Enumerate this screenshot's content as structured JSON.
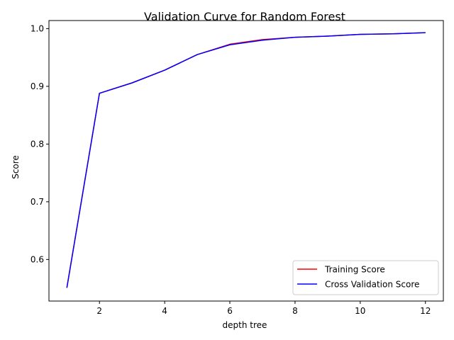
{
  "chart_data": {
    "type": "line",
    "title": "Validation Curve for Random Forest",
    "xlabel": "depth tree",
    "ylabel": "Score",
    "xlim": [
      0.45,
      12.55
    ],
    "ylim": [
      0.528,
      1.014
    ],
    "xticks": [
      2,
      4,
      6,
      8,
      10,
      12
    ],
    "yticks": [
      0.6,
      0.7,
      0.8,
      0.9,
      1.0
    ],
    "x": [
      1,
      2,
      3,
      4,
      5,
      6,
      7,
      8,
      9,
      10,
      11,
      12
    ],
    "series": [
      {
        "name": "Training Score",
        "color": "#ff0000",
        "values": [
          0.551,
          0.888,
          0.906,
          0.928,
          0.955,
          0.973,
          0.981,
          0.985,
          0.987,
          0.99,
          0.991,
          0.993
        ]
      },
      {
        "name": "Cross Validation Score",
        "color": "#0000ff",
        "values": [
          0.551,
          0.888,
          0.906,
          0.928,
          0.955,
          0.972,
          0.98,
          0.985,
          0.987,
          0.99,
          0.991,
          0.993
        ]
      }
    ],
    "grid": false,
    "legend_position": "lower right"
  }
}
